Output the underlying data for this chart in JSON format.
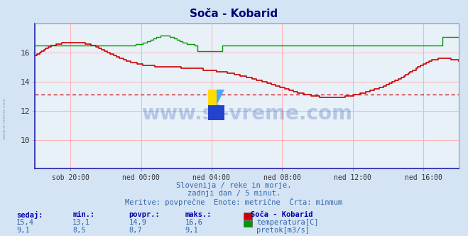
{
  "title": "Soča - Kobarid",
  "background_color": "#d4e4f4",
  "plot_bg_color": "#e8f0f8",
  "grid_color": "#ffb0b0",
  "x_labels": [
    "sob 20:00",
    "ned 00:00",
    "ned 04:00",
    "ned 08:00",
    "ned 12:00",
    "ned 16:00"
  ],
  "ylim_temp": [
    8.0,
    18.0
  ],
  "yticks_temp": [
    10,
    12,
    14,
    16
  ],
  "ylim_flow": [
    0.0,
    10.0
  ],
  "avg_temp": 13.1,
  "temp_color": "#cc0000",
  "flow_color": "#009900",
  "axis_color": "#3333aa",
  "watermark_text": "www.si-vreme.com",
  "subtitle1": "Slovenija / reke in morje.",
  "subtitle2": "zadnji dan / 5 minut.",
  "subtitle3": "Meritve: povprečne  Enote: metrične  Črta: minmum",
  "table_headers": [
    "sedaj:",
    "min.:",
    "povpr.:",
    "maks.:"
  ],
  "table_temp": [
    "15,4",
    "13,1",
    "14,9",
    "16,6"
  ],
  "table_flow": [
    "9,1",
    "8,5",
    "8,7",
    "9,1"
  ],
  "legend_station": "Soča - Kobarid",
  "legend_temp": "temperatura[C]",
  "legend_flow": "pretok[m3/s]",
  "left_label": "www.si-vreme.com"
}
